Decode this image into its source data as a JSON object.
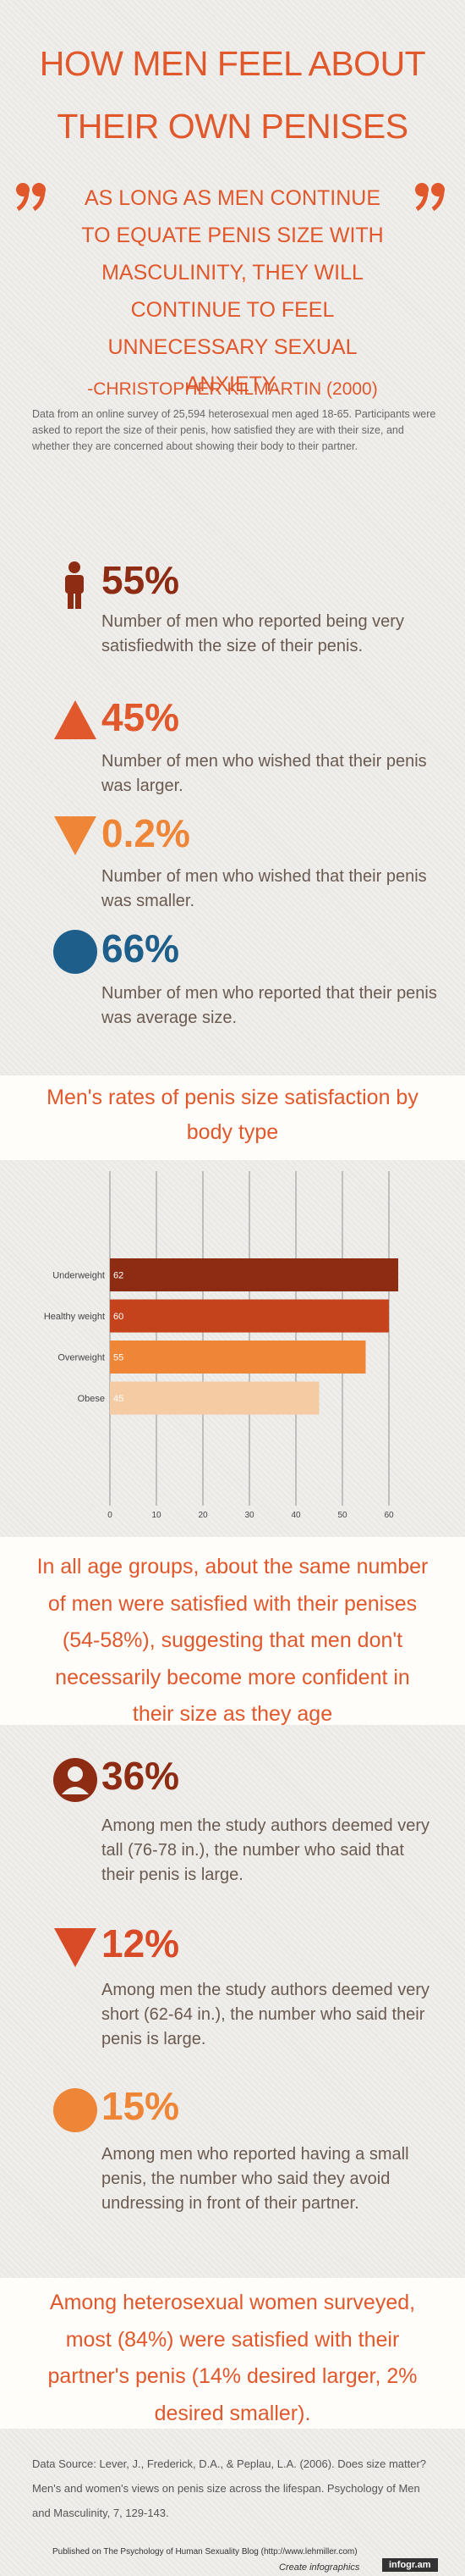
{
  "header": {
    "title_lines": [
      "HOW MEN FEEL ABOUT",
      "THEIR OWN PENISES"
    ]
  },
  "quote": {
    "text": "AS LONG AS MEN CONTINUE TO EQUATE PENIS SIZE WITH MASCULINITY, THEY WILL CONTINUE TO FEEL UNNECESSARY SEXUAL ANXIETY.",
    "author": "-CHRISTOPHER KILMARTIN (2000)"
  },
  "intro": "Data from an online survey of 25,594 heterosexual men aged 18-65. Participants were asked to report the size of their penis, how satisfied they are with their size, and whether they are concerned about showing their body to their partner.",
  "stats": [
    {
      "value": "55%",
      "text": "Number of men who reported being very satisfiedwith the size of their penis."
    },
    {
      "value": "45%",
      "text": "Number of men who wished that their penis was larger."
    },
    {
      "value": "0.2%",
      "text": "Number of men who wished that their penis was smaller."
    },
    {
      "value": "66%",
      "text": "Number of men who reported that their penis was average size."
    }
  ],
  "chart_data": {
    "type": "hbar",
    "title": "Men's rates of penis size satisfaction by body type",
    "categories": [
      "Underweight",
      "Healthy weight",
      "Overweight",
      "Obese"
    ],
    "values": [
      62,
      60,
      55,
      45
    ],
    "colors": [
      "#8e2b13",
      "#c5431c",
      "#ef8537",
      "#f4cba3"
    ],
    "xlim": [
      0,
      65
    ],
    "xticks": [
      0,
      10,
      20,
      30,
      40,
      50,
      60
    ],
    "grid": true
  },
  "age_note": "In all age groups, about the same number of men were satisfied with their penises (54-58%), suggesting that men don't necessarily become more confident in their size as they age",
  "stats2": [
    {
      "value": "36%",
      "text": "Among men the study authors deemed very tall (76-78 in.), the number who said that their penis is large."
    },
    {
      "value": "12%",
      "text": "Among men the study authors deemed very short (62-64 in.), the number who said their penis is large."
    },
    {
      "value": "15%",
      "text": "Among men who reported having a small penis, the number who said they avoid undressing in front of their partner."
    }
  ],
  "women_note": "Among heterosexual women surveyed, most (84%) were satisfied with their partner's penis (14% desired larger, 2% desired smaller).",
  "source": "Data Source: Lever, J., Frederick, D.A., & Peplau, L.A. (2006). Does size matter? Men's and women's views on penis size across the lifespan. Psychology of Men and Masculinity, 7, 129-143.",
  "footer": {
    "published": "Published on The Psychology of Human Sexuality Blog (http://www.lehmiller.com)",
    "create": "Create infographics",
    "brand": "infogr.am"
  }
}
